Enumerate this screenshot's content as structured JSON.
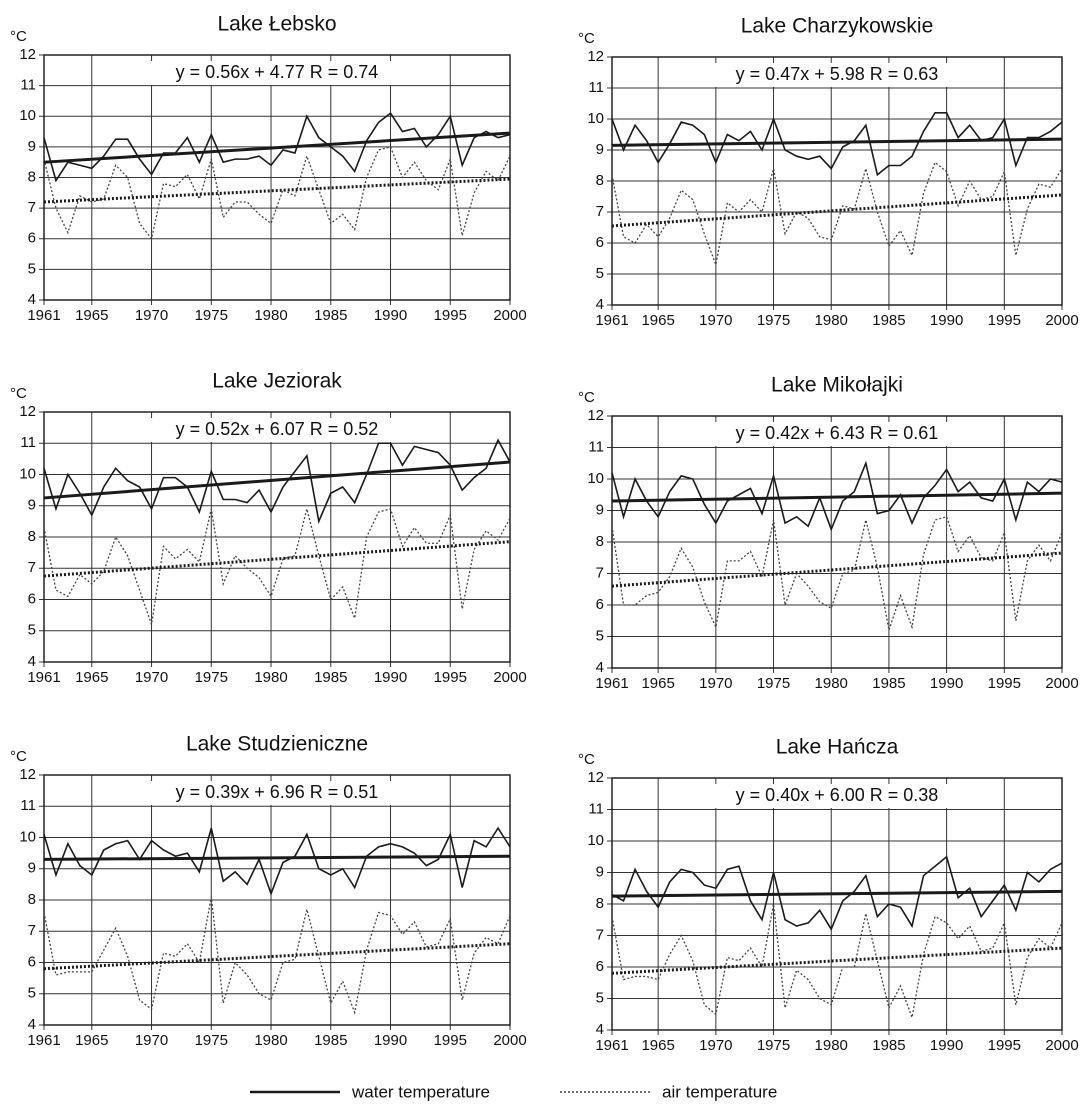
{
  "chart_data": [
    {
      "type": "line",
      "title": "Lake Łebsko",
      "unit_label": "°C",
      "annotation": "y = 0.56x + 4.77   R = 0.74",
      "x": [
        1961,
        1962,
        1963,
        1964,
        1965,
        1966,
        1967,
        1968,
        1969,
        1970,
        1971,
        1972,
        1973,
        1974,
        1975,
        1976,
        1977,
        1978,
        1979,
        1980,
        1981,
        1982,
        1983,
        1984,
        1985,
        1986,
        1987,
        1988,
        1989,
        1990,
        1991,
        1992,
        1993,
        1994,
        1995,
        1996,
        1997,
        1998,
        1999,
        2000
      ],
      "xlim": [
        1961,
        2000
      ],
      "xticks": [
        1961,
        1965,
        1970,
        1975,
        1980,
        1985,
        1990,
        1995,
        2000
      ],
      "ylim": [
        4,
        12
      ],
      "yticks": [
        4,
        5,
        6,
        7,
        8,
        9,
        10,
        11,
        12
      ],
      "grid": true,
      "series": [
        {
          "name": "water temperature",
          "color": "#1a1a1a",
          "style": "solid",
          "values": [
            9.3,
            7.9,
            8.5,
            8.4,
            8.3,
            8.7,
            9.25,
            9.25,
            8.6,
            8.1,
            8.8,
            8.8,
            9.3,
            8.5,
            9.4,
            8.5,
            8.6,
            8.6,
            8.7,
            8.4,
            8.9,
            8.8,
            10.0,
            9.3,
            9.0,
            8.7,
            8.2,
            9.2,
            9.8,
            10.1,
            9.5,
            9.6,
            9.0,
            9.4,
            10.0,
            8.4,
            9.3,
            9.5,
            9.3,
            9.4
          ]
        },
        {
          "name": "air temperature",
          "color": "#444444",
          "style": "dotted",
          "values": [
            8.6,
            7.0,
            6.2,
            7.4,
            7.2,
            7.3,
            8.4,
            8.0,
            6.5,
            6.0,
            7.8,
            7.7,
            8.1,
            7.3,
            8.6,
            6.7,
            7.2,
            7.2,
            6.8,
            6.5,
            7.6,
            7.4,
            8.7,
            7.6,
            6.5,
            6.8,
            6.3,
            8.0,
            8.9,
            9.0,
            8.0,
            8.5,
            7.9,
            7.6,
            8.6,
            6.1,
            7.5,
            8.2,
            7.9,
            8.7
          ]
        }
      ],
      "trendlines": [
        {
          "style": "solid",
          "color": "#1a1a1a",
          "x": [
            1961,
            2000
          ],
          "values": [
            8.5,
            9.45
          ]
        },
        {
          "style": "dotted",
          "color": "#1a1a1a",
          "x": [
            1961,
            2000
          ],
          "values": [
            7.2,
            7.95
          ]
        }
      ]
    },
    {
      "type": "line",
      "title": "Lake Charzykowskie",
      "unit_label": "°C",
      "annotation": "y = 0.47x + 5.98   R = 0.63",
      "x": [
        1961,
        1962,
        1963,
        1964,
        1965,
        1966,
        1967,
        1968,
        1969,
        1970,
        1971,
        1972,
        1973,
        1974,
        1975,
        1976,
        1977,
        1978,
        1979,
        1980,
        1981,
        1982,
        1983,
        1984,
        1985,
        1986,
        1987,
        1988,
        1989,
        1990,
        1991,
        1992,
        1993,
        1994,
        1995,
        1996,
        1997,
        1998,
        1999,
        2000
      ],
      "xlim": [
        1961,
        2000
      ],
      "xticks": [
        1961,
        1965,
        1970,
        1975,
        1980,
        1985,
        1990,
        1995,
        2000
      ],
      "ylim": [
        4,
        12
      ],
      "yticks": [
        4,
        5,
        6,
        7,
        8,
        9,
        10,
        11,
        12
      ],
      "grid": true,
      "series": [
        {
          "name": "water temperature",
          "color": "#1a1a1a",
          "style": "solid",
          "values": [
            10.0,
            9.0,
            9.8,
            9.3,
            8.6,
            9.2,
            9.9,
            9.8,
            9.5,
            8.6,
            9.5,
            9.3,
            9.6,
            9.0,
            10.0,
            9.0,
            8.8,
            8.7,
            8.8,
            8.4,
            9.1,
            9.3,
            9.8,
            8.2,
            8.5,
            8.5,
            8.8,
            9.6,
            10.2,
            10.2,
            9.4,
            9.8,
            9.3,
            9.4,
            10.0,
            8.5,
            9.4,
            9.4,
            9.6,
            9.9
          ]
        },
        {
          "name": "air temperature",
          "color": "#444444",
          "style": "dotted",
          "values": [
            8.2,
            6.2,
            6.0,
            6.6,
            6.2,
            6.8,
            7.7,
            7.4,
            6.3,
            5.3,
            7.3,
            7.0,
            7.4,
            7.0,
            8.4,
            6.3,
            7.0,
            6.8,
            6.2,
            6.1,
            7.2,
            7.1,
            8.4,
            7.0,
            5.9,
            6.4,
            5.6,
            7.6,
            8.6,
            8.3,
            7.2,
            8.0,
            7.4,
            7.5,
            8.3,
            5.6,
            7.1,
            7.9,
            7.8,
            8.4
          ]
        }
      ],
      "trendlines": [
        {
          "style": "solid",
          "color": "#1a1a1a",
          "x": [
            1961,
            2000
          ],
          "values": [
            9.15,
            9.35
          ]
        },
        {
          "style": "dotted",
          "color": "#1a1a1a",
          "x": [
            1961,
            2000
          ],
          "values": [
            6.55,
            7.55
          ]
        }
      ]
    },
    {
      "type": "line",
      "title": "Lake Jeziorak",
      "unit_label": "°C",
      "annotation": "y = 0.52x + 6.07   R = 0.52",
      "x": [
        1961,
        1962,
        1963,
        1964,
        1965,
        1966,
        1967,
        1968,
        1969,
        1970,
        1971,
        1972,
        1973,
        1974,
        1975,
        1976,
        1977,
        1978,
        1979,
        1980,
        1981,
        1982,
        1983,
        1984,
        1985,
        1986,
        1987,
        1988,
        1989,
        1990,
        1991,
        1992,
        1993,
        1994,
        1995,
        1996,
        1997,
        1998,
        1999,
        2000
      ],
      "xlim": [
        1961,
        2000
      ],
      "xticks": [
        1961,
        1965,
        1970,
        1975,
        1980,
        1985,
        1990,
        1995,
        2000
      ],
      "ylim": [
        4,
        12
      ],
      "yticks": [
        4,
        5,
        6,
        7,
        8,
        9,
        10,
        11,
        12
      ],
      "grid": true,
      "series": [
        {
          "name": "water temperature",
          "color": "#1a1a1a",
          "style": "solid",
          "values": [
            10.2,
            8.9,
            10.0,
            9.4,
            8.7,
            9.6,
            10.2,
            9.8,
            9.6,
            8.9,
            9.9,
            9.9,
            9.6,
            8.8,
            10.1,
            9.2,
            9.2,
            9.1,
            9.5,
            8.8,
            9.6,
            10.1,
            10.6,
            8.5,
            9.4,
            9.6,
            9.1,
            10.0,
            11.0,
            11.0,
            10.3,
            10.9,
            10.8,
            10.7,
            10.3,
            9.5,
            9.9,
            10.2,
            11.1,
            10.4
          ]
        },
        {
          "name": "air temperature",
          "color": "#444444",
          "style": "dotted",
          "values": [
            8.3,
            6.3,
            6.1,
            6.8,
            6.5,
            6.9,
            8.0,
            7.4,
            6.3,
            5.2,
            7.7,
            7.3,
            7.6,
            7.2,
            8.9,
            6.5,
            7.4,
            7.0,
            6.7,
            6.1,
            7.3,
            7.4,
            8.9,
            7.4,
            6.0,
            6.4,
            5.4,
            8.0,
            8.8,
            8.9,
            7.7,
            8.3,
            7.8,
            7.8,
            8.7,
            5.7,
            7.6,
            8.2,
            7.9,
            8.6
          ]
        }
      ],
      "trendlines": [
        {
          "style": "solid",
          "color": "#1a1a1a",
          "x": [
            1961,
            2000
          ],
          "values": [
            9.25,
            10.4
          ]
        },
        {
          "style": "dotted",
          "color": "#1a1a1a",
          "x": [
            1961,
            2000
          ],
          "values": [
            6.75,
            7.85
          ]
        }
      ]
    },
    {
      "type": "line",
      "title": "Lake Mikołajki",
      "unit_label": "°C",
      "annotation": "y = 0.42x + 6.43   R = 0.61",
      "x": [
        1961,
        1962,
        1963,
        1964,
        1965,
        1966,
        1967,
        1968,
        1969,
        1970,
        1971,
        1972,
        1973,
        1974,
        1975,
        1976,
        1977,
        1978,
        1979,
        1980,
        1981,
        1982,
        1983,
        1984,
        1985,
        1986,
        1987,
        1988,
        1989,
        1990,
        1991,
        1992,
        1993,
        1994,
        1995,
        1996,
        1997,
        1998,
        1999,
        2000
      ],
      "xlim": [
        1961,
        2000
      ],
      "xticks": [
        1961,
        1965,
        1970,
        1975,
        1980,
        1985,
        1990,
        1995,
        2000
      ],
      "ylim": [
        4,
        12
      ],
      "yticks": [
        4,
        5,
        6,
        7,
        8,
        9,
        10,
        11,
        12
      ],
      "grid": true,
      "series": [
        {
          "name": "water temperature",
          "color": "#1a1a1a",
          "style": "solid",
          "values": [
            10.2,
            8.8,
            10.0,
            9.3,
            8.8,
            9.6,
            10.1,
            10.0,
            9.2,
            8.6,
            9.3,
            9.5,
            9.7,
            8.9,
            10.1,
            8.6,
            8.8,
            8.5,
            9.4,
            8.4,
            9.3,
            9.6,
            10.5,
            8.9,
            9.0,
            9.5,
            8.6,
            9.4,
            9.8,
            10.3,
            9.6,
            9.9,
            9.4,
            9.3,
            10.0,
            8.7,
            9.9,
            9.6,
            10.0,
            9.9
          ]
        },
        {
          "name": "air temperature",
          "color": "#444444",
          "style": "dotted",
          "values": [
            8.5,
            6.0,
            6.0,
            6.3,
            6.4,
            6.9,
            7.8,
            7.2,
            6.1,
            5.3,
            7.4,
            7.4,
            7.7,
            6.9,
            8.7,
            6.0,
            7.0,
            6.6,
            6.1,
            5.9,
            7.0,
            7.1,
            8.7,
            7.2,
            5.2,
            6.3,
            5.3,
            7.6,
            8.7,
            8.8,
            7.7,
            8.2,
            7.5,
            7.4,
            8.3,
            5.5,
            7.4,
            7.9,
            7.4,
            8.3
          ]
        }
      ],
      "trendlines": [
        {
          "style": "solid",
          "color": "#1a1a1a",
          "x": [
            1961,
            2000
          ],
          "values": [
            9.3,
            9.55
          ]
        },
        {
          "style": "dotted",
          "color": "#1a1a1a",
          "x": [
            1961,
            2000
          ],
          "values": [
            6.6,
            7.65
          ]
        }
      ]
    },
    {
      "type": "line",
      "title": "Lake Studzieniczne",
      "unit_label": "°C",
      "annotation": "y = 0.39x + 6.96   R = 0.51",
      "x": [
        1961,
        1962,
        1963,
        1964,
        1965,
        1966,
        1967,
        1968,
        1969,
        1970,
        1971,
        1972,
        1973,
        1974,
        1975,
        1976,
        1977,
        1978,
        1979,
        1980,
        1981,
        1982,
        1983,
        1984,
        1985,
        1986,
        1987,
        1988,
        1989,
        1990,
        1991,
        1992,
        1993,
        1994,
        1995,
        1996,
        1997,
        1998,
        1999,
        2000
      ],
      "xlim": [
        1961,
        2000
      ],
      "xticks": [
        1961,
        1965,
        1970,
        1975,
        1980,
        1985,
        1990,
        1995,
        2000
      ],
      "ylim": [
        4,
        12
      ],
      "yticks": [
        4,
        5,
        6,
        7,
        8,
        9,
        10,
        11,
        12
      ],
      "grid": true,
      "series": [
        {
          "name": "water temperature",
          "color": "#1a1a1a",
          "style": "solid",
          "values": [
            10.1,
            8.8,
            9.8,
            9.1,
            8.8,
            9.6,
            9.8,
            9.9,
            9.3,
            9.9,
            9.6,
            9.4,
            9.5,
            8.9,
            10.3,
            8.6,
            8.9,
            8.5,
            9.3,
            8.2,
            9.2,
            9.4,
            10.1,
            9.0,
            8.8,
            9.0,
            8.4,
            9.4,
            9.7,
            9.8,
            9.7,
            9.5,
            9.1,
            9.3,
            10.1,
            8.4,
            9.9,
            9.7,
            10.3,
            9.7
          ]
        },
        {
          "name": "air temperature",
          "color": "#444444",
          "style": "dotted",
          "values": [
            7.6,
            5.6,
            5.7,
            5.7,
            5.7,
            6.4,
            7.1,
            6.2,
            4.8,
            4.5,
            6.3,
            6.2,
            6.6,
            6.0,
            8.1,
            4.7,
            6.0,
            5.6,
            5.0,
            4.8,
            6.0,
            6.1,
            7.7,
            6.2,
            4.7,
            5.4,
            4.4,
            6.4,
            7.6,
            7.5,
            6.9,
            7.3,
            6.5,
            6.6,
            7.4,
            4.8,
            6.3,
            6.8,
            6.6,
            7.5
          ]
        }
      ],
      "trendlines": [
        {
          "style": "solid",
          "color": "#1a1a1a",
          "x": [
            1961,
            2000
          ],
          "values": [
            9.3,
            9.4
          ]
        },
        {
          "style": "dotted",
          "color": "#1a1a1a",
          "x": [
            1961,
            2000
          ],
          "values": [
            5.8,
            6.6
          ]
        }
      ]
    },
    {
      "type": "line",
      "title": "Lake Hańcza",
      "unit_label": "°C",
      "annotation": "y = 0.40x + 6.00   R = 0.38",
      "x": [
        1961,
        1962,
        1963,
        1964,
        1965,
        1966,
        1967,
        1968,
        1969,
        1970,
        1971,
        1972,
        1973,
        1974,
        1975,
        1976,
        1977,
        1978,
        1979,
        1980,
        1981,
        1982,
        1983,
        1984,
        1985,
        1986,
        1987,
        1988,
        1989,
        1990,
        1991,
        1992,
        1993,
        1994,
        1995,
        1996,
        1997,
        1998,
        1999,
        2000
      ],
      "xlim": [
        1961,
        2000
      ],
      "xticks": [
        1961,
        1965,
        1970,
        1975,
        1980,
        1985,
        1990,
        1995,
        2000
      ],
      "ylim": [
        4,
        12
      ],
      "yticks": [
        4,
        5,
        6,
        7,
        8,
        9,
        10,
        11,
        12
      ],
      "grid": true,
      "series": [
        {
          "name": "water temperature",
          "color": "#1a1a1a",
          "style": "solid",
          "values": [
            8.3,
            8.1,
            9.1,
            8.4,
            7.9,
            8.7,
            9.1,
            9.0,
            8.6,
            8.5,
            9.1,
            9.2,
            8.1,
            7.5,
            9.0,
            7.5,
            7.3,
            7.4,
            7.8,
            7.2,
            8.1,
            8.4,
            8.9,
            7.6,
            8.0,
            7.9,
            7.3,
            8.9,
            9.2,
            9.5,
            8.2,
            8.5,
            7.6,
            8.1,
            8.6,
            7.8,
            9.0,
            8.7,
            9.1,
            9.3
          ]
        },
        {
          "name": "air temperature",
          "color": "#444444",
          "style": "dotted",
          "values": [
            7.6,
            5.6,
            5.7,
            5.7,
            5.6,
            6.4,
            7.0,
            6.2,
            4.8,
            4.5,
            6.3,
            6.2,
            6.6,
            6.0,
            8.0,
            4.7,
            5.9,
            5.6,
            5.0,
            4.8,
            6.0,
            6.0,
            7.7,
            6.2,
            4.7,
            5.4,
            4.4,
            6.4,
            7.6,
            7.4,
            6.9,
            7.3,
            6.5,
            6.6,
            7.4,
            4.8,
            6.3,
            6.9,
            6.6,
            7.4
          ]
        }
      ],
      "trendlines": [
        {
          "style": "solid",
          "color": "#1a1a1a",
          "x": [
            1961,
            2000
          ],
          "values": [
            8.25,
            8.4
          ]
        },
        {
          "style": "dotted",
          "color": "#1a1a1a",
          "x": [
            1961,
            2000
          ],
          "values": [
            5.8,
            6.6
          ]
        }
      ]
    }
  ]
}
